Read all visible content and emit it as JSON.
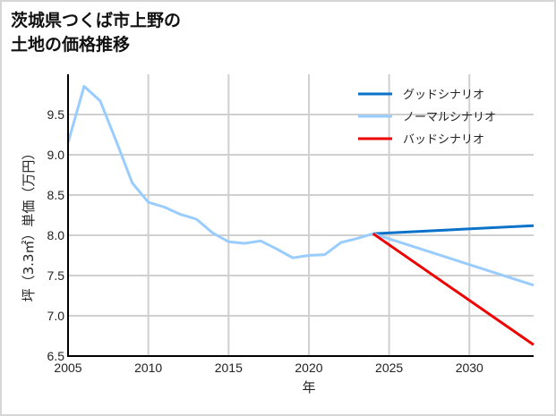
{
  "title_line1": "茨城県つくば市上野の",
  "title_line2": "土地の価格推移",
  "chart_data": {
    "type": "line",
    "title": "茨城県つくば市上野の土地の価格推移",
    "xlabel": "年",
    "ylabel": "坪（3.3㎡）単価（万円）",
    "xlim": [
      2005,
      2034
    ],
    "ylim": [
      6.5,
      10.0
    ],
    "xticks": [
      2005,
      2010,
      2015,
      2020,
      2025,
      2030
    ],
    "yticks": [
      6.5,
      7.0,
      7.5,
      8.0,
      8.5,
      9.0,
      9.5
    ],
    "grid": true,
    "legend_position": "upper right",
    "series": [
      {
        "name": "グッドシナリオ",
        "color": "#0a72c8",
        "x": [
          2024,
          2034
        ],
        "values": [
          8.02,
          8.12
        ]
      },
      {
        "name": "ノーマルシナリオ",
        "color": "#99ccff",
        "x": [
          2005,
          2006,
          2007,
          2008,
          2009,
          2010,
          2011,
          2012,
          2013,
          2014,
          2015,
          2016,
          2017,
          2018,
          2019,
          2020,
          2021,
          2022,
          2023,
          2024,
          2034
        ],
        "values": [
          9.15,
          9.85,
          9.67,
          9.17,
          8.65,
          8.41,
          8.35,
          8.26,
          8.2,
          8.03,
          7.92,
          7.9,
          7.93,
          7.83,
          7.72,
          7.75,
          7.76,
          7.91,
          7.96,
          8.02,
          7.38
        ]
      },
      {
        "name": "バッドシナリオ",
        "color": "#ee0000",
        "x": [
          2024,
          2034
        ],
        "values": [
          8.02,
          6.64
        ]
      }
    ]
  }
}
